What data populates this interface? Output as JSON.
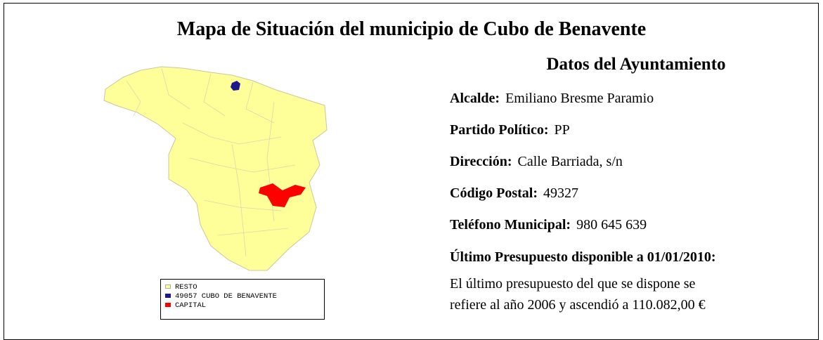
{
  "header": {
    "title": "Mapa de Situación del municipio de Cubo de Benavente"
  },
  "map": {
    "legend": [
      "RESTO",
      "49057 CUBO DE BENAVENTE",
      "CAPITAL"
    ]
  },
  "datos": {
    "title": "Datos del Ayuntamiento",
    "fields": [
      {
        "label": "Alcalde:",
        "value": "Emiliano Bresme Paramio"
      },
      {
        "label": "Partido Político:",
        "value": "PP"
      },
      {
        "label": "Dirección:",
        "value": "Calle Barriada, s/n"
      },
      {
        "label": "Código Postal:",
        "value": "49327"
      },
      {
        "label": "Teléfono Municipal:",
        "value": "980 645 639"
      }
    ],
    "budget_heading": "Último Presupuesto disponible a 01/01/2010:",
    "budget_text": [
      "El último presupuesto del que se dispone se",
      "refiere al año 2006 y ascendió a 110.082,00 €"
    ]
  }
}
